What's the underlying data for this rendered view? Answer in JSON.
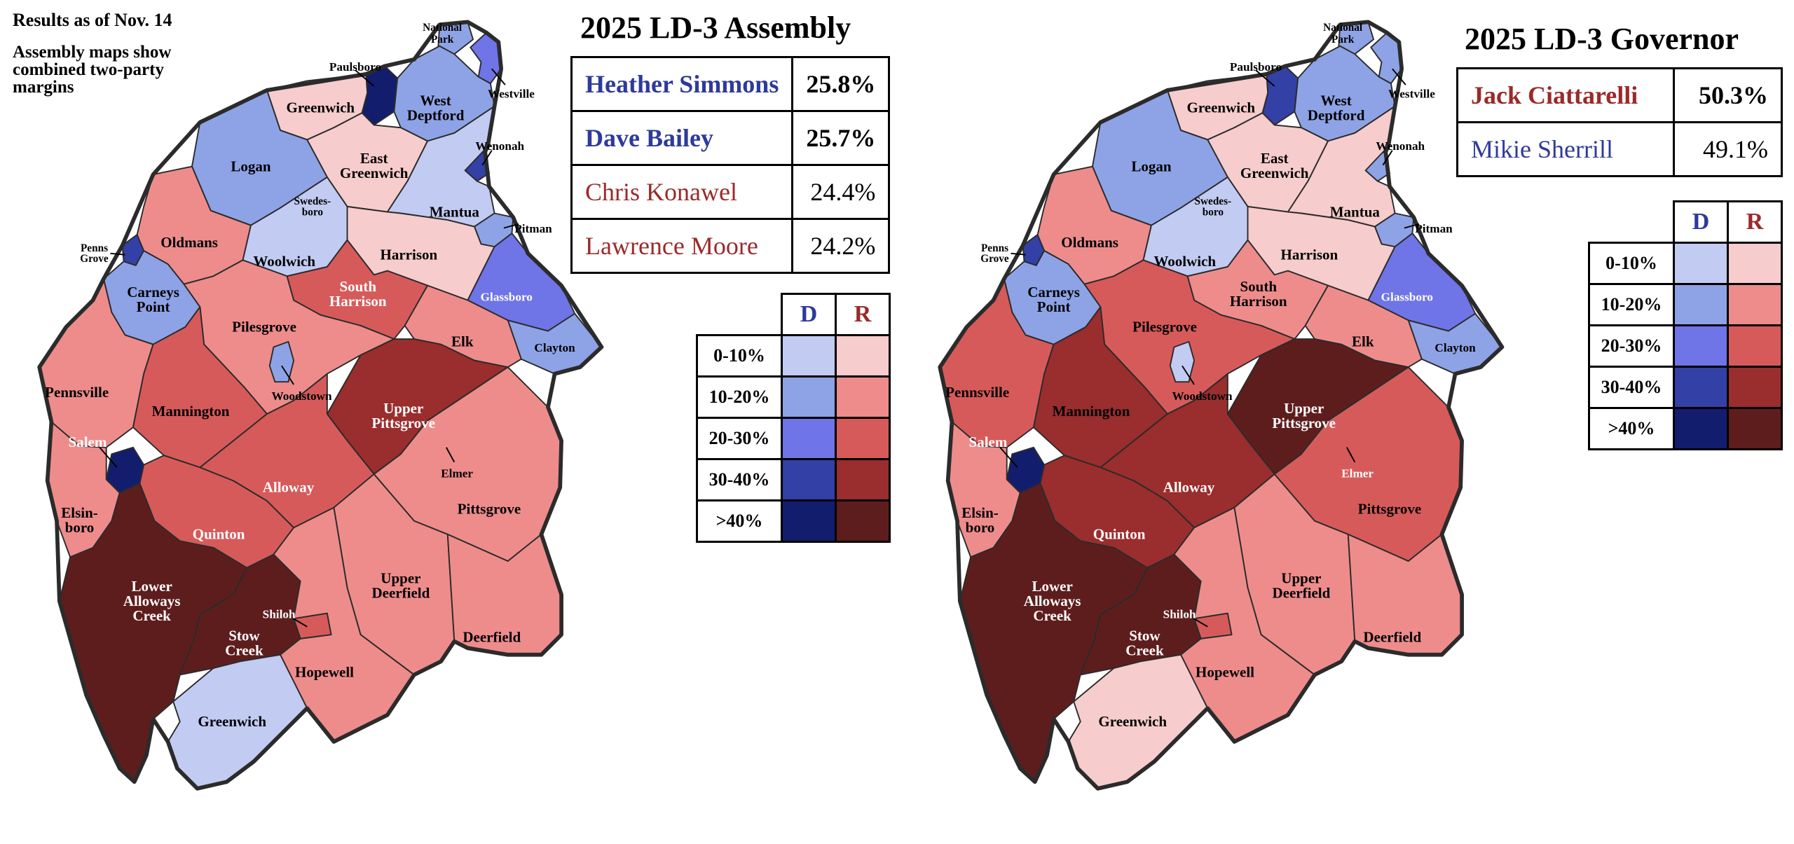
{
  "notes": {
    "results_as_of": "Results as of Nov. 14",
    "method": "Assembly maps show combined two-party margins"
  },
  "colors": {
    "d1": "#c2cbf2",
    "d2": "#8ea3e6",
    "d3": "#6f74e6",
    "d4": "#3340a6",
    "d5": "#131d6e",
    "r1": "#f6cccc",
    "r2": "#ee8c8c",
    "r3": "#d75a5a",
    "r4": "#9a2d2d",
    "r5": "#5e1d1d"
  },
  "assembly": {
    "title": "2025 LD-3 Assembly",
    "candidates": [
      {
        "name": "Heather Simmons",
        "pct": "25.8%",
        "party": "D",
        "winner": true
      },
      {
        "name": "Dave Bailey",
        "pct": "25.7%",
        "party": "D",
        "winner": true
      },
      {
        "name": "Chris Konawel",
        "pct": "24.4%",
        "party": "R",
        "winner": false
      },
      {
        "name": "Lawrence Moore",
        "pct": "24.2%",
        "party": "R",
        "winner": false
      }
    ]
  },
  "governor": {
    "title": "2025 LD-3 Governor",
    "candidates": [
      {
        "name": "Jack Ciattarelli",
        "pct": "50.3%",
        "party": "R",
        "winner": true
      },
      {
        "name": "Mikie Sherrill",
        "pct": "49.1%",
        "party": "D",
        "winner": false
      }
    ]
  },
  "legend": {
    "d_header": "D",
    "r_header": "R",
    "ranges": [
      "0-10%",
      "10-20%",
      "20-30%",
      "30-40%",
      ">40%"
    ]
  },
  "municipalities": [
    {
      "id": "national-park",
      "name": "National Park",
      "assembly": "d2",
      "governor": "d2"
    },
    {
      "id": "paulsboro",
      "name": "Paulsboro",
      "assembly": "d5",
      "governor": "d4"
    },
    {
      "id": "westville",
      "name": "Westville",
      "assembly": "d3",
      "governor": "d2"
    },
    {
      "id": "west-deptford",
      "name": "West Deptford",
      "assembly": "d2",
      "governor": "d2"
    },
    {
      "id": "greenwich-gloucester",
      "name": "Greenwich",
      "assembly": "r1",
      "governor": "r1"
    },
    {
      "id": "wenonah",
      "name": "Wenonah",
      "assembly": "d4",
      "governor": "d2"
    },
    {
      "id": "east-greenwich",
      "name": "East Greenwich",
      "assembly": "r1",
      "governor": "r1"
    },
    {
      "id": "logan",
      "name": "Logan",
      "assembly": "d2",
      "governor": "d2"
    },
    {
      "id": "mantua",
      "name": "Mantua",
      "assembly": "d1",
      "governor": "r1"
    },
    {
      "id": "swedesboro",
      "name": "Swedes-boro",
      "assembly": "d2",
      "governor": "d2"
    },
    {
      "id": "pitman",
      "name": "Pitman",
      "assembly": "d2",
      "governor": "d2"
    },
    {
      "id": "penns-grove",
      "name": "Penns Grove",
      "assembly": "d4",
      "governor": "d4"
    },
    {
      "id": "oldmans",
      "name": "Oldmans",
      "assembly": "r2",
      "governor": "r2"
    },
    {
      "id": "woolwich",
      "name": "Woolwich",
      "assembly": "d1",
      "governor": "d1"
    },
    {
      "id": "harrison",
      "name": "Harrison",
      "assembly": "r1",
      "governor": "r1"
    },
    {
      "id": "carneys-point",
      "name": "Carneys Point",
      "assembly": "d2",
      "governor": "d2"
    },
    {
      "id": "glassboro",
      "name": "Glassboro",
      "assembly": "d3",
      "governor": "d3"
    },
    {
      "id": "south-harrison",
      "name": "South Harrison",
      "assembly": "r3",
      "governor": "r2"
    },
    {
      "id": "clayton",
      "name": "Clayton",
      "assembly": "d2",
      "governor": "d2"
    },
    {
      "id": "pilesgrove",
      "name": "Pilesgrove",
      "assembly": "r2",
      "governor": "r3"
    },
    {
      "id": "elk",
      "name": "Elk",
      "assembly": "r2",
      "governor": "r2"
    },
    {
      "id": "pennsville",
      "name": "Pennsville",
      "assembly": "r2",
      "governor": "r3"
    },
    {
      "id": "mannington",
      "name": "Mannington",
      "assembly": "r3",
      "governor": "r4"
    },
    {
      "id": "woodstown",
      "name": "Woodstown",
      "assembly": "d2",
      "governor": "d1"
    },
    {
      "id": "upper-pittsgrove",
      "name": "Upper Pittsgrove",
      "assembly": "r4",
      "governor": "r5"
    },
    {
      "id": "salem",
      "name": "Salem",
      "assembly": "d5",
      "governor": "d5"
    },
    {
      "id": "elmer",
      "name": "Elmer",
      "assembly": "r2",
      "governor": "r3"
    },
    {
      "id": "alloway",
      "name": "Alloway",
      "assembly": "r3",
      "governor": "r4"
    },
    {
      "id": "pittsgrove",
      "name": "Pittsgrove",
      "assembly": "r2",
      "governor": "r3"
    },
    {
      "id": "elsinboro",
      "name": "Elsin-boro",
      "assembly": "r2",
      "governor": "r2"
    },
    {
      "id": "quinton",
      "name": "Quinton",
      "assembly": "r3",
      "governor": "r4"
    },
    {
      "id": "lower-alloways-creek",
      "name": "Lower Alloways Creek",
      "assembly": "r5",
      "governor": "r5"
    },
    {
      "id": "upper-deerfield",
      "name": "Upper Deerfield",
      "assembly": "r2",
      "governor": "r2"
    },
    {
      "id": "shiloh",
      "name": "Shiloh",
      "assembly": "r3",
      "governor": "r3"
    },
    {
      "id": "deerfield",
      "name": "Deerfield",
      "assembly": "r2",
      "governor": "r2"
    },
    {
      "id": "stow-creek",
      "name": "Stow Creek",
      "assembly": "r5",
      "governor": "r5"
    },
    {
      "id": "hopewell",
      "name": "Hopewell",
      "assembly": "r2",
      "governor": "r2"
    },
    {
      "id": "greenwich-cumberland",
      "name": "Greenwich",
      "assembly": "d1",
      "governor": "r1"
    }
  ]
}
